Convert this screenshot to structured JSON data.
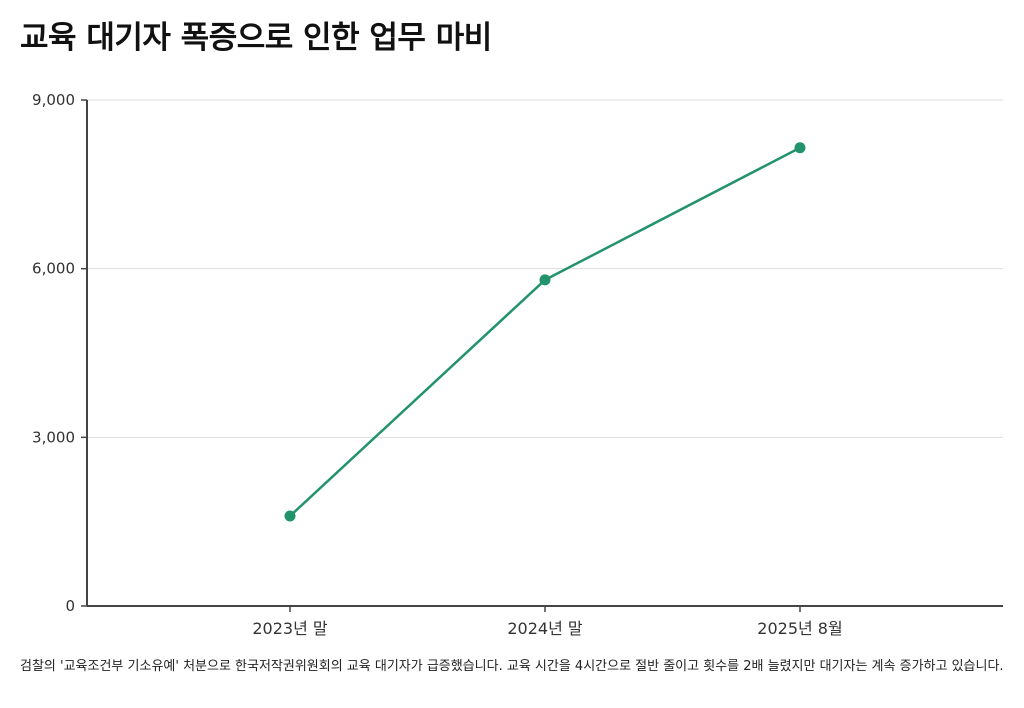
{
  "chart_data": {
    "type": "line",
    "title": "교육 대기자 폭증으로 인한 업무 마비",
    "categories": [
      "2023년 말",
      "2024년 말",
      "2025년 8월"
    ],
    "series": [
      {
        "values": [
          1600,
          5800,
          8150
        ]
      }
    ],
    "yticks": [
      0,
      3000,
      6000,
      9000
    ],
    "ytick_labels": [
      "0",
      "3,000",
      "6,000",
      "9,000"
    ],
    "ylim": [
      0,
      9000
    ],
    "xlabel": "",
    "ylabel": "",
    "grid": "horizontal",
    "colors": {
      "line": "#22936b",
      "grid": "#dddddd",
      "axis": "#444444"
    }
  },
  "footnote": "검찰의 '교육조건부 기소유예' 처분으로 한국저작권위원회의 교육 대기자가 급증했습니다. 교육 시간을 4시간으로 절반 줄이고 횟수를 2배 늘렸지만 대기자는 계속 증가하고 있습니다."
}
